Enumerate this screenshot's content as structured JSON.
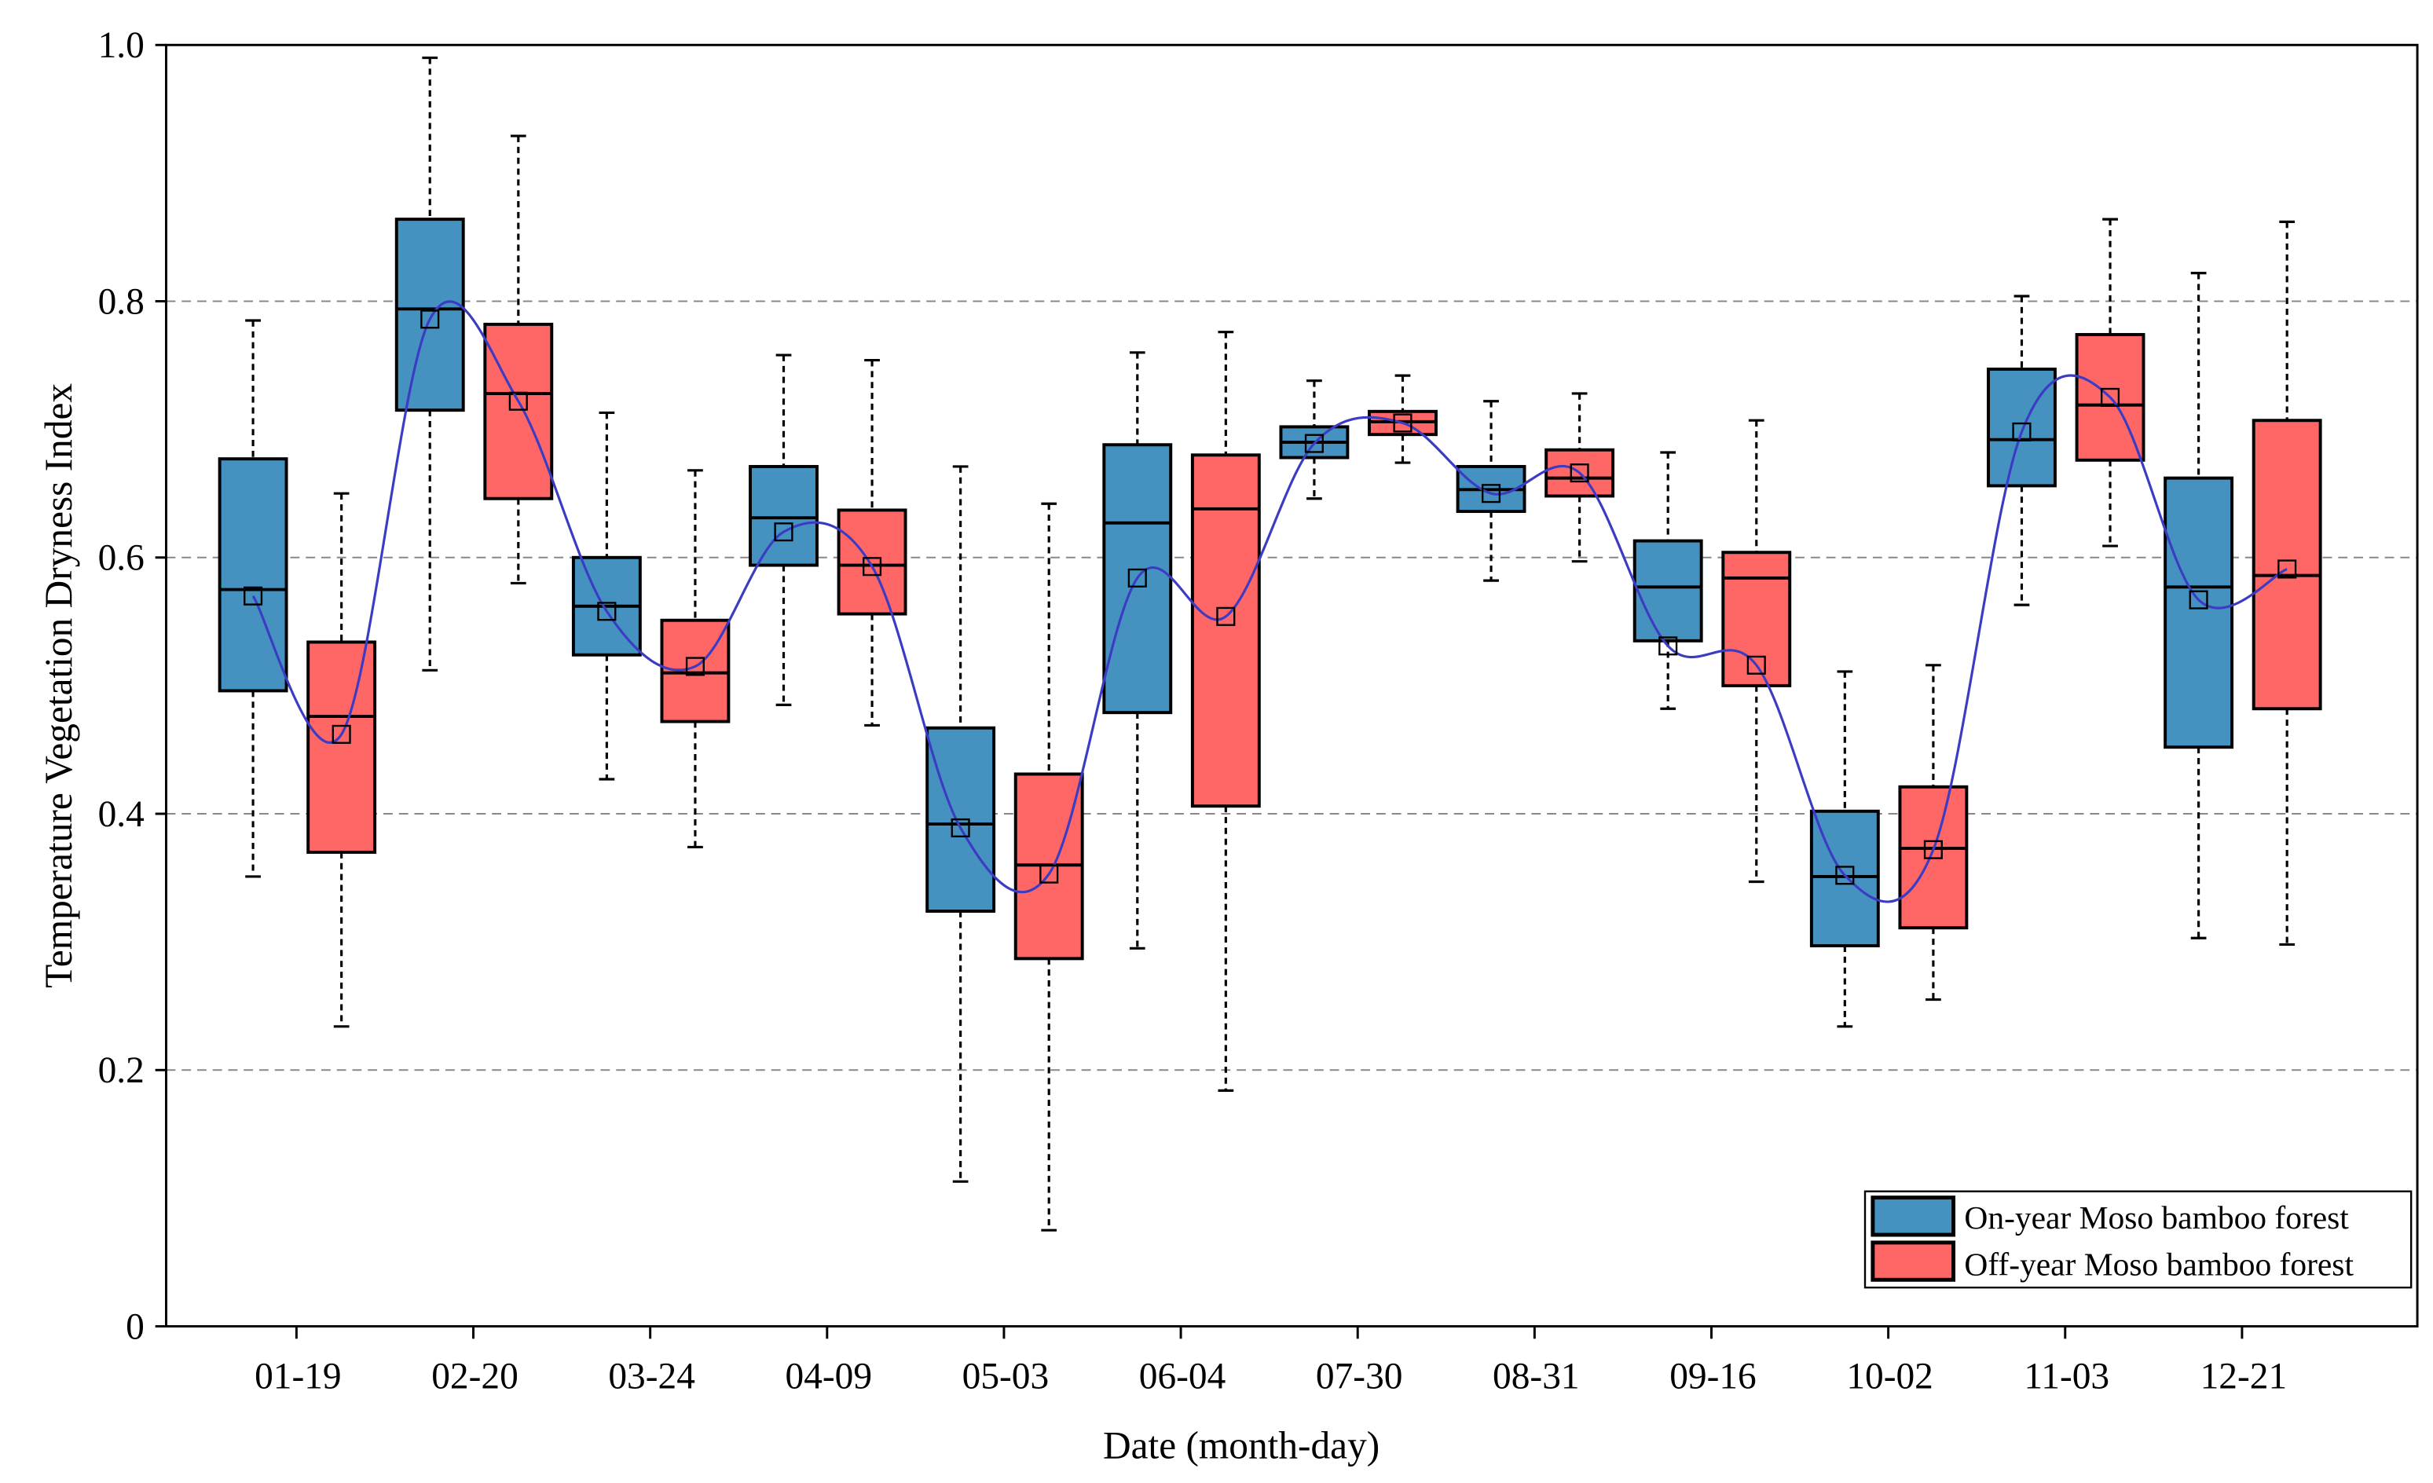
{
  "chart_data": {
    "type": "box",
    "xlabel": "Date (month-day)",
    "ylabel": "Temperature Vegetation Dryness Index",
    "ylim": [
      0,
      1.0
    ],
    "yticks": [
      0,
      0.2,
      0.4,
      0.6,
      0.8,
      1.0
    ],
    "ytick_labels": [
      "0",
      "0.2",
      "0.4",
      "0.6",
      "0.8",
      "1.0"
    ],
    "grid": "horizontal dashed",
    "legend_position": "bottom-right",
    "categories": [
      "01-19",
      "02-20",
      "03-24",
      "04-09",
      "05-03",
      "06-04",
      "07-30",
      "08-31",
      "09-16",
      "10-02",
      "11-03",
      "12-21"
    ],
    "series": [
      {
        "name": "On-year Moso bamboo forest",
        "color": "#4592c1",
        "whisker_low": [
          0.351,
          0.512,
          0.427,
          0.485,
          0.113,
          0.295,
          0.646,
          0.582,
          0.482,
          0.234,
          0.563,
          0.303
        ],
        "q1": [
          0.496,
          0.715,
          0.524,
          0.594,
          0.324,
          0.479,
          0.678,
          0.636,
          0.535,
          0.297,
          0.656,
          0.452
        ],
        "median": [
          0.575,
          0.794,
          0.562,
          0.631,
          0.392,
          0.627,
          0.69,
          0.653,
          0.577,
          0.351,
          0.692,
          0.577
        ],
        "q3": [
          0.677,
          0.864,
          0.6,
          0.671,
          0.467,
          0.688,
          0.702,
          0.671,
          0.613,
          0.402,
          0.747,
          0.662
        ],
        "whisker_high": [
          0.785,
          0.99,
          0.713,
          0.758,
          0.671,
          0.76,
          0.738,
          0.722,
          0.682,
          0.511,
          0.804,
          0.822
        ],
        "mean": [
          0.57,
          0.786,
          0.558,
          0.62,
          0.389,
          0.584,
          0.689,
          0.65,
          0.531,
          0.352,
          0.698,
          0.567
        ]
      },
      {
        "name": "Off-year Moso bamboo forest",
        "color": "#ff6666",
        "whisker_low": [
          0.234,
          0.58,
          0.374,
          0.469,
          0.075,
          0.184,
          0.674,
          0.597,
          0.347,
          0.255,
          0.609,
          0.298
        ],
        "q1": [
          0.37,
          0.646,
          0.472,
          0.556,
          0.287,
          0.406,
          0.696,
          0.648,
          0.5,
          0.311,
          0.676,
          0.482
        ],
        "median": [
          0.476,
          0.728,
          0.51,
          0.594,
          0.36,
          0.638,
          0.706,
          0.662,
          0.584,
          0.373,
          0.719,
          0.586
        ],
        "q3": [
          0.534,
          0.782,
          0.551,
          0.637,
          0.431,
          0.68,
          0.714,
          0.684,
          0.604,
          0.421,
          0.774,
          0.707
        ],
        "whisker_high": [
          0.65,
          0.929,
          0.668,
          0.754,
          0.642,
          0.776,
          0.742,
          0.728,
          0.707,
          0.516,
          0.864,
          0.862
        ],
        "mean": [
          0.462,
          0.722,
          0.515,
          0.593,
          0.353,
          0.554,
          0.705,
          0.666,
          0.516,
          0.372,
          0.725,
          0.591
        ]
      }
    ],
    "mean_line_color": "#3b3bc4"
  }
}
